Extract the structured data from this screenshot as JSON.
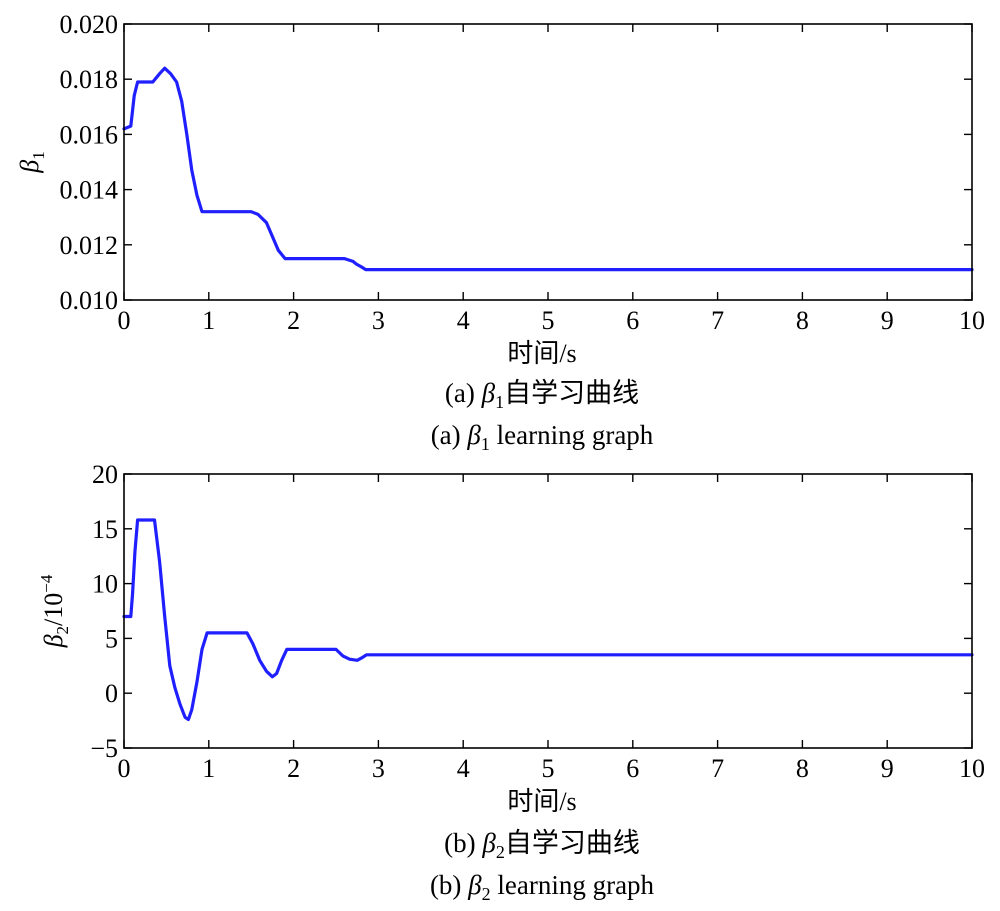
{
  "chart_data": [
    {
      "type": "line",
      "xlabel": "时间/s",
      "ylabel_symbol": "β",
      "ylabel_sub": "1",
      "ylabel_suffix": "",
      "ylabel_sup": "",
      "xlim": [
        0,
        10
      ],
      "ylim": [
        0.01,
        0.02
      ],
      "xticks": [
        0,
        1,
        2,
        3,
        4,
        5,
        6,
        7,
        8,
        9,
        10
      ],
      "yticks": [
        0.01,
        0.012,
        0.014,
        0.016,
        0.018,
        0.02
      ],
      "ytick_labels": [
        "0.010",
        "0.012",
        "0.014",
        "0.016",
        "0.018",
        "0.020"
      ],
      "grid": false,
      "line_color": "#1f1fff",
      "caption_cn": {
        "prefix": "(a) ",
        "symbol": "β",
        "sub": "1",
        "text": "自学习曲线"
      },
      "caption_en": {
        "prefix": "(a) ",
        "symbol": "β",
        "sub": "1",
        "text": " learning graph"
      },
      "series": [
        {
          "x": [
            0,
            0.08,
            0.12,
            0.16,
            0.34,
            0.42,
            0.48,
            0.55,
            0.62,
            0.68,
            0.74,
            0.8,
            0.86,
            0.92,
            1.5,
            1.58,
            1.68,
            1.75,
            1.82,
            1.9,
            2.0,
            2.6,
            2.7,
            2.74,
            2.8,
            2.85,
            10
          ],
          "y": [
            0.0162,
            0.0163,
            0.0174,
            0.0179,
            0.0179,
            0.0182,
            0.0184,
            0.0182,
            0.0179,
            0.0172,
            0.016,
            0.0147,
            0.0138,
            0.0132,
            0.0132,
            0.0131,
            0.0128,
            0.0123,
            0.0118,
            0.0115,
            0.0115,
            0.0115,
            0.0114,
            0.0113,
            0.0112,
            0.0111,
            0.0111
          ]
        }
      ]
    },
    {
      "type": "line",
      "xlabel": "时间/s",
      "ylabel_symbol": "β",
      "ylabel_sub": "2",
      "ylabel_suffix": "/10",
      "ylabel_sup": "−4",
      "xlim": [
        0,
        10
      ],
      "ylim": [
        -5,
        20
      ],
      "xticks": [
        0,
        1,
        2,
        3,
        4,
        5,
        6,
        7,
        8,
        9,
        10
      ],
      "yticks": [
        -5,
        0,
        5,
        10,
        15,
        20
      ],
      "ytick_labels": [
        "−5",
        "0",
        "5",
        "10",
        "15",
        "20"
      ],
      "grid": false,
      "line_color": "#1f1fff",
      "caption_cn": {
        "prefix": "(b) ",
        "symbol": "β",
        "sub": "2",
        "text": "自学习曲线"
      },
      "caption_en": {
        "prefix": "(b) ",
        "symbol": "β",
        "sub": "2",
        "text": " learning graph"
      },
      "series": [
        {
          "x": [
            0,
            0.08,
            0.1,
            0.13,
            0.16,
            0.36,
            0.42,
            0.48,
            0.54,
            0.6,
            0.66,
            0.72,
            0.76,
            0.8,
            0.86,
            0.92,
            0.98,
            1.45,
            1.52,
            1.6,
            1.68,
            1.75,
            1.8,
            1.86,
            1.92,
            2.0,
            2.5,
            2.58,
            2.66,
            2.75,
            2.8,
            2.86,
            10
          ],
          "y": [
            7.0,
            7.0,
            9.0,
            13.0,
            15.8,
            15.8,
            12.0,
            7.0,
            2.5,
            0.5,
            -1.0,
            -2.2,
            -2.4,
            -1.5,
            1.0,
            4.0,
            5.5,
            5.5,
            4.5,
            3.0,
            2.0,
            1.5,
            1.8,
            3.0,
            4.0,
            4.0,
            4.0,
            3.4,
            3.1,
            3.0,
            3.2,
            3.5,
            3.5
          ]
        }
      ]
    }
  ]
}
